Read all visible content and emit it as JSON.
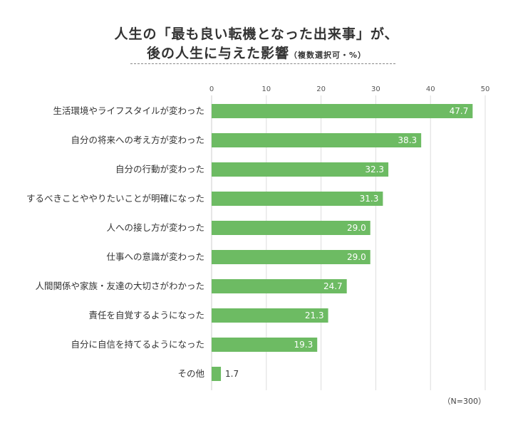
{
  "title": {
    "line1": "人生の「最も良い転機となった出来事」が、",
    "line2": "後の人生に与えた影響",
    "line2_note": "（複数選択可・%）"
  },
  "footnote": "（N=300）",
  "colors": {
    "bar": "#6dbb63",
    "grid": "#dddddd",
    "axis": "#cccccc"
  },
  "chart_data": {
    "type": "bar",
    "orientation": "horizontal",
    "categories": [
      "生活環境やライフスタイルが変わった",
      "自分の将来への考え方が変わった",
      "自分の行動が変わった",
      "するべきことややりたいことが明確になった",
      "人への接し方が変わった",
      "仕事への意識が変わった",
      "人間関係や家族・友達の大切さがわかった",
      "責任を自覚するようになった",
      "自分に自信を持てるようになった",
      "その他"
    ],
    "values": [
      47.7,
      38.3,
      32.3,
      31.3,
      29.0,
      29.0,
      24.7,
      21.3,
      19.3,
      1.7
    ],
    "value_labels": [
      "47.7",
      "38.3",
      "32.3",
      "31.3",
      "29.0",
      "29.0",
      "24.7",
      "21.3",
      "19.3",
      "1.7"
    ],
    "xlim": [
      0,
      50
    ],
    "xticks": [
      0,
      10,
      20,
      30,
      40,
      50
    ],
    "xtick_labels": [
      "0",
      "10",
      "20",
      "30",
      "40",
      "50"
    ],
    "axis_position": "top",
    "grid": true
  }
}
